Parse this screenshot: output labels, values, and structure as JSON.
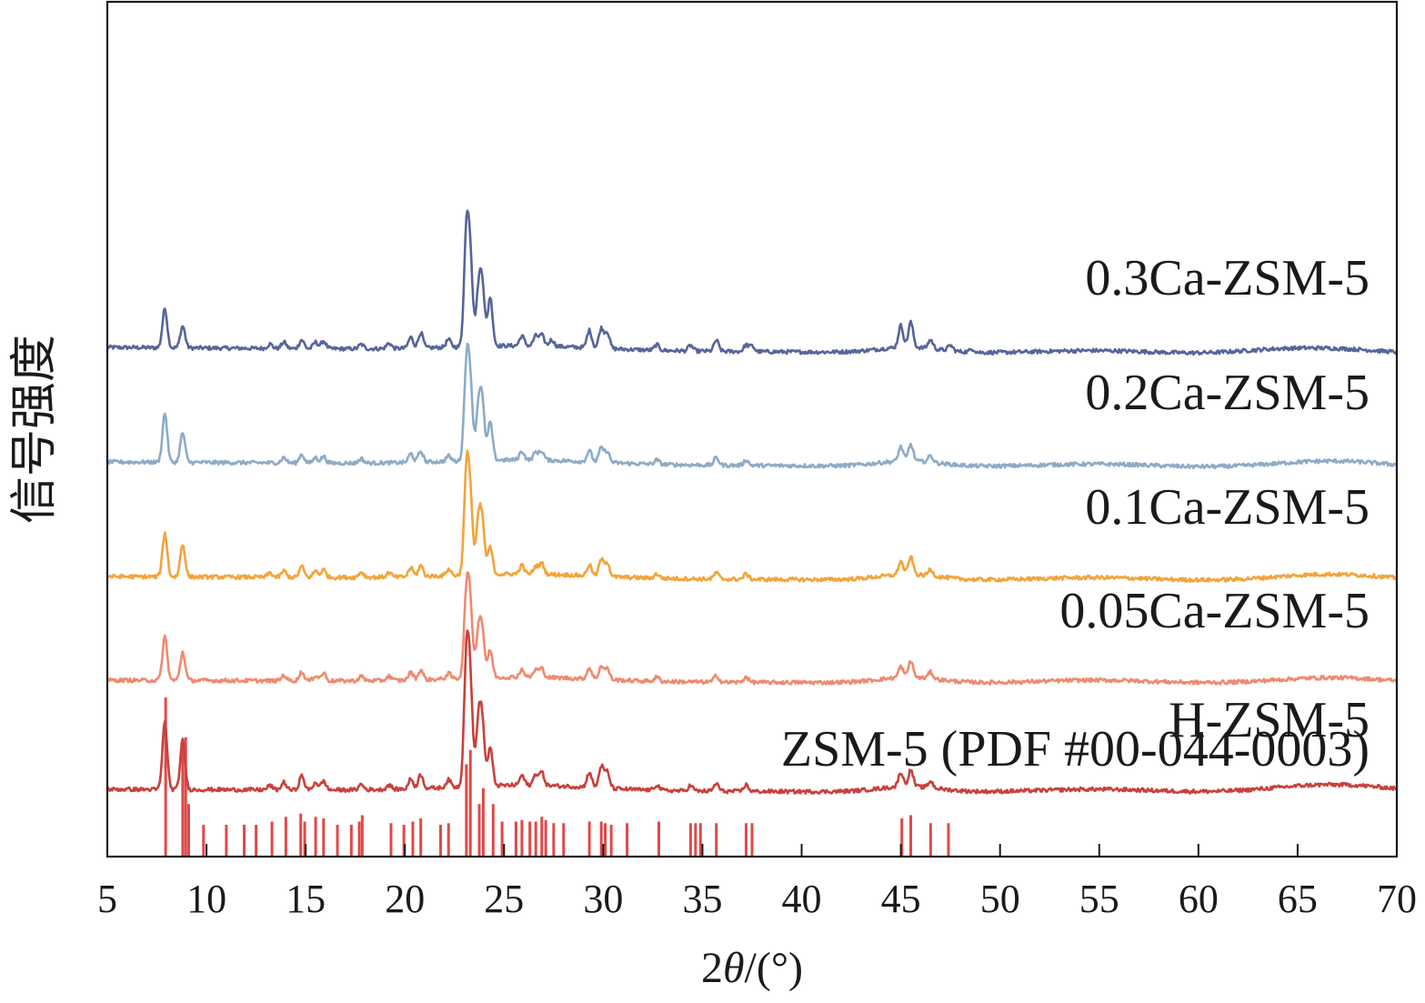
{
  "chart_data": {
    "type": "line",
    "title": "",
    "xlabel_prefix": "2",
    "xlabel_var": "θ",
    "xlabel_suffix": "/(°)",
    "ylabel": "信号强度",
    "xlim": [
      5,
      70
    ],
    "xticks": [
      5,
      10,
      15,
      20,
      25,
      30,
      35,
      40,
      45,
      50,
      55,
      60,
      65,
      70
    ],
    "xtick_labels": [
      "5",
      "10",
      "15",
      "20",
      "25",
      "30",
      "35",
      "40",
      "45",
      "50",
      "55",
      "60",
      "65",
      "70"
    ],
    "yticks_shown": false,
    "grid": false,
    "legend": "inline labels at right of each trace",
    "series": [
      {
        "name": "0.3Ca-ZSM-5",
        "color": "#56659a",
        "offset": 4.6,
        "peaks": [
          [
            7.9,
            0.36
          ],
          [
            8.8,
            0.2
          ],
          [
            13.2,
            0.04
          ],
          [
            13.9,
            0.06
          ],
          [
            14.8,
            0.08
          ],
          [
            15.5,
            0.06
          ],
          [
            15.9,
            0.07
          ],
          [
            17.8,
            0.04
          ],
          [
            19.2,
            0.05
          ],
          [
            20.3,
            0.1
          ],
          [
            20.8,
            0.14
          ],
          [
            22.2,
            0.07
          ],
          [
            23.1,
            1.0
          ],
          [
            23.3,
            0.75
          ],
          [
            23.7,
            0.45
          ],
          [
            23.9,
            0.55
          ],
          [
            24.3,
            0.45
          ],
          [
            25.9,
            0.09
          ],
          [
            26.6,
            0.09
          ],
          [
            26.9,
            0.1
          ],
          [
            27.4,
            0.06
          ],
          [
            29.3,
            0.16
          ],
          [
            29.9,
            0.18
          ],
          [
            30.2,
            0.15
          ],
          [
            32.7,
            0.05
          ],
          [
            34.4,
            0.05
          ],
          [
            35.7,
            0.1
          ],
          [
            37.2,
            0.06
          ],
          [
            37.5,
            0.05
          ],
          [
            45.0,
            0.2
          ],
          [
            45.5,
            0.23
          ],
          [
            46.5,
            0.08
          ],
          [
            47.5,
            0.05
          ],
          [
            48.6,
            0.03
          ]
        ],
        "broad": [
          [
            26.0,
            0.04,
            3.5
          ],
          [
            45.4,
            0.05,
            1.5
          ],
          [
            55.0,
            0.03,
            3
          ],
          [
            66.8,
            0.06,
            3
          ],
          [
            63.5,
            0.02,
            2
          ]
        ],
        "baseline_slope": -0.012,
        "values": "computed from peaks"
      },
      {
        "name": "0.2Ca-ZSM-5",
        "color": "#8cabc8",
        "offset": 3.55,
        "peaks": [
          [
            7.9,
            0.45
          ],
          [
            8.8,
            0.27
          ],
          [
            13.9,
            0.05
          ],
          [
            14.8,
            0.08
          ],
          [
            15.5,
            0.05
          ],
          [
            15.9,
            0.06
          ],
          [
            17.8,
            0.04
          ],
          [
            20.3,
            0.08
          ],
          [
            20.8,
            0.1
          ],
          [
            22.2,
            0.05
          ],
          [
            23.1,
            0.83
          ],
          [
            23.3,
            0.65
          ],
          [
            23.7,
            0.45
          ],
          [
            23.9,
            0.5
          ],
          [
            24.3,
            0.35
          ],
          [
            25.9,
            0.08
          ],
          [
            26.6,
            0.07
          ],
          [
            26.9,
            0.08
          ],
          [
            29.3,
            0.1
          ],
          [
            29.9,
            0.13
          ],
          [
            30.2,
            0.1
          ],
          [
            32.7,
            0.04
          ],
          [
            35.7,
            0.07
          ],
          [
            37.2,
            0.05
          ],
          [
            45.0,
            0.13
          ],
          [
            45.5,
            0.15
          ],
          [
            46.5,
            0.06
          ]
        ],
        "broad": [
          [
            26.0,
            0.04,
            3.5
          ],
          [
            45.4,
            0.05,
            1.5
          ],
          [
            55.0,
            0.03,
            3
          ],
          [
            66.8,
            0.07,
            3
          ]
        ],
        "baseline_slope": -0.01,
        "values": "computed from peaks"
      },
      {
        "name": "0.1Ca-ZSM-5",
        "color": "#f2a43b",
        "offset": 2.5,
        "peaks": [
          [
            7.9,
            0.4
          ],
          [
            8.8,
            0.3
          ],
          [
            13.2,
            0.04
          ],
          [
            13.9,
            0.06
          ],
          [
            14.8,
            0.1
          ],
          [
            15.5,
            0.06
          ],
          [
            15.9,
            0.07
          ],
          [
            17.8,
            0.05
          ],
          [
            19.2,
            0.04
          ],
          [
            20.3,
            0.08
          ],
          [
            20.8,
            0.1
          ],
          [
            22.2,
            0.06
          ],
          [
            23.1,
            0.9
          ],
          [
            23.3,
            0.65
          ],
          [
            23.7,
            0.45
          ],
          [
            23.9,
            0.45
          ],
          [
            24.3,
            0.25
          ],
          [
            25.9,
            0.08
          ],
          [
            26.6,
            0.07
          ],
          [
            26.9,
            0.1
          ],
          [
            29.3,
            0.1
          ],
          [
            29.9,
            0.15
          ],
          [
            30.2,
            0.13
          ],
          [
            32.7,
            0.04
          ],
          [
            35.7,
            0.06
          ],
          [
            37.2,
            0.05
          ],
          [
            45.0,
            0.12
          ],
          [
            45.5,
            0.16
          ],
          [
            46.5,
            0.06
          ]
        ],
        "broad": [
          [
            26.0,
            0.04,
            3.5
          ],
          [
            45.4,
            0.05,
            1.5
          ],
          [
            55.0,
            0.03,
            3
          ],
          [
            66.8,
            0.07,
            3
          ]
        ],
        "baseline_slope": -0.008,
        "values": "computed from peaks"
      },
      {
        "name": "0.05Ca-ZSM-5",
        "color": "#ef8a6f",
        "offset": 1.55,
        "peaks": [
          [
            7.9,
            0.4
          ],
          [
            8.8,
            0.26
          ],
          [
            13.9,
            0.05
          ],
          [
            14.8,
            0.08
          ],
          [
            15.5,
            0.05
          ],
          [
            15.9,
            0.07
          ],
          [
            17.8,
            0.04
          ],
          [
            19.2,
            0.04
          ],
          [
            20.3,
            0.07
          ],
          [
            20.8,
            0.09
          ],
          [
            22.2,
            0.05
          ],
          [
            23.1,
            0.75
          ],
          [
            23.3,
            0.6
          ],
          [
            23.7,
            0.4
          ],
          [
            23.9,
            0.4
          ],
          [
            24.3,
            0.25
          ],
          [
            25.9,
            0.07
          ],
          [
            26.6,
            0.07
          ],
          [
            26.9,
            0.08
          ],
          [
            29.3,
            0.1
          ],
          [
            29.9,
            0.12
          ],
          [
            30.2,
            0.1
          ],
          [
            32.7,
            0.04
          ],
          [
            35.7,
            0.06
          ],
          [
            37.2,
            0.05
          ],
          [
            45.0,
            0.1
          ],
          [
            45.5,
            0.15
          ],
          [
            46.5,
            0.06
          ]
        ],
        "broad": [
          [
            26.0,
            0.04,
            3.5
          ],
          [
            45.4,
            0.05,
            1.5
          ],
          [
            55.0,
            0.03,
            3
          ],
          [
            66.8,
            0.06,
            3
          ]
        ],
        "baseline_slope": -0.006,
        "values": "computed from peaks"
      },
      {
        "name": "H-ZSM-5",
        "color": "#c8413c",
        "offset": 0.55,
        "peaks": [
          [
            7.9,
            0.62
          ],
          [
            8.8,
            0.45
          ],
          [
            13.2,
            0.04
          ],
          [
            13.9,
            0.07
          ],
          [
            14.8,
            0.13
          ],
          [
            15.5,
            0.07
          ],
          [
            15.9,
            0.08
          ],
          [
            17.8,
            0.05
          ],
          [
            19.2,
            0.04
          ],
          [
            20.3,
            0.09
          ],
          [
            20.8,
            0.13
          ],
          [
            22.2,
            0.07
          ],
          [
            23.1,
            1.15
          ],
          [
            23.3,
            0.85
          ],
          [
            23.7,
            0.55
          ],
          [
            23.9,
            0.55
          ],
          [
            24.3,
            0.35
          ],
          [
            25.9,
            0.09
          ],
          [
            26.6,
            0.1
          ],
          [
            26.9,
            0.12
          ],
          [
            29.3,
            0.14
          ],
          [
            29.9,
            0.2
          ],
          [
            30.2,
            0.15
          ],
          [
            32.7,
            0.05
          ],
          [
            34.4,
            0.05
          ],
          [
            35.7,
            0.07
          ],
          [
            37.2,
            0.06
          ],
          [
            45.0,
            0.13
          ],
          [
            45.5,
            0.15
          ],
          [
            46.5,
            0.06
          ]
        ],
        "broad": [
          [
            26.0,
            0.05,
            3.5
          ],
          [
            45.4,
            0.05,
            1.5
          ],
          [
            55.0,
            0.03,
            3
          ],
          [
            66.8,
            0.08,
            3
          ]
        ],
        "baseline_slope": -0.006,
        "values": "computed from peaks"
      }
    ],
    "reference": {
      "name": "ZSM-5 (PDF #00-044-0003)",
      "color": "#e04848",
      "sticks": [
        [
          7.94,
          1.0
        ],
        [
          8.8,
          0.7
        ],
        [
          8.95,
          0.75
        ],
        [
          9.1,
          0.33
        ],
        [
          9.85,
          0.2
        ],
        [
          11.0,
          0.2
        ],
        [
          11.9,
          0.2
        ],
        [
          12.5,
          0.2
        ],
        [
          13.3,
          0.22
        ],
        [
          14.0,
          0.25
        ],
        [
          14.75,
          0.27
        ],
        [
          14.95,
          0.22
        ],
        [
          15.5,
          0.25
        ],
        [
          15.9,
          0.24
        ],
        [
          16.6,
          0.2
        ],
        [
          17.3,
          0.2
        ],
        [
          17.7,
          0.22
        ],
        [
          17.85,
          0.26
        ],
        [
          19.3,
          0.21
        ],
        [
          19.95,
          0.2
        ],
        [
          20.4,
          0.22
        ],
        [
          20.8,
          0.24
        ],
        [
          21.8,
          0.2
        ],
        [
          22.2,
          0.21
        ],
        [
          23.1,
          0.58
        ],
        [
          23.3,
          0.67
        ],
        [
          23.75,
          0.33
        ],
        [
          23.95,
          0.43
        ],
        [
          24.45,
          0.33
        ],
        [
          24.9,
          0.22
        ],
        [
          25.6,
          0.22
        ],
        [
          25.9,
          0.23
        ],
        [
          26.3,
          0.22
        ],
        [
          26.6,
          0.22
        ],
        [
          26.9,
          0.25
        ],
        [
          27.1,
          0.23
        ],
        [
          27.5,
          0.21
        ],
        [
          28.0,
          0.21
        ],
        [
          29.3,
          0.22
        ],
        [
          29.9,
          0.22
        ],
        [
          30.1,
          0.21
        ],
        [
          30.4,
          0.2
        ],
        [
          31.2,
          0.21
        ],
        [
          32.8,
          0.22
        ],
        [
          34.4,
          0.21
        ],
        [
          34.65,
          0.21
        ],
        [
          34.9,
          0.21
        ],
        [
          35.7,
          0.21
        ],
        [
          37.2,
          0.21
        ],
        [
          37.5,
          0.21
        ],
        [
          45.05,
          0.24
        ],
        [
          45.5,
          0.26
        ],
        [
          46.5,
          0.21
        ],
        [
          47.4,
          0.21
        ]
      ]
    }
  }
}
